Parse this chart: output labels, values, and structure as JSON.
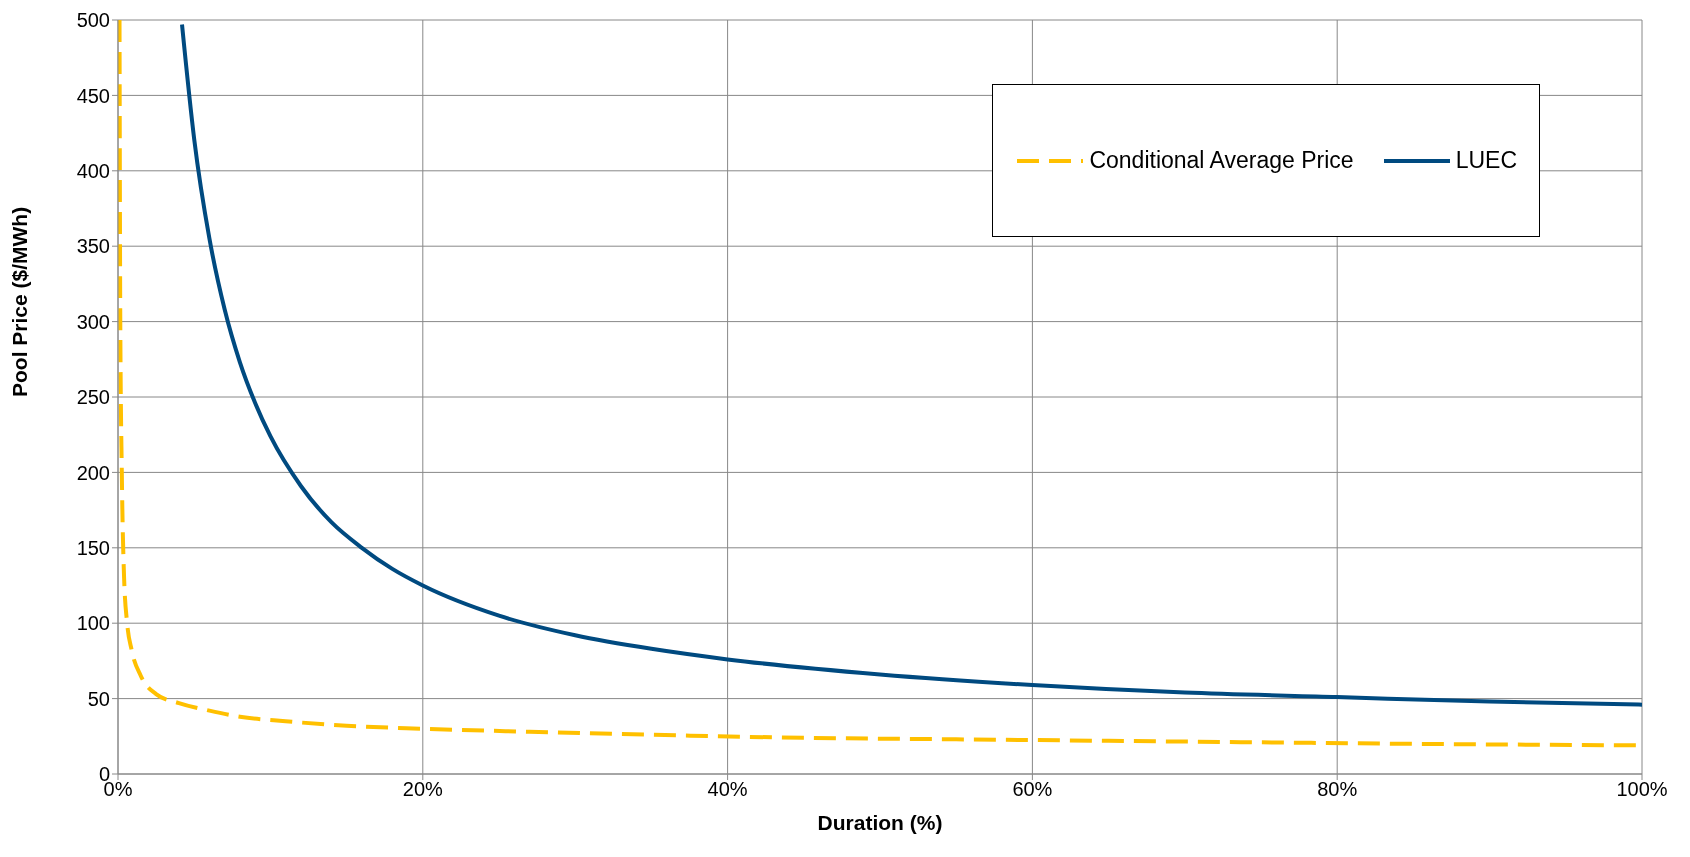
{
  "chart_data": {
    "type": "line",
    "xlabel": "Duration (%)",
    "ylabel": "Pool Price ($/MWh)",
    "xlim": [
      0,
      100
    ],
    "ylim": [
      0,
      500
    ],
    "xticks": [
      {
        "value": 0,
        "label": "0%"
      },
      {
        "value": 20,
        "label": "20%"
      },
      {
        "value": 40,
        "label": "40%"
      },
      {
        "value": 60,
        "label": "60%"
      },
      {
        "value": 80,
        "label": "80%"
      },
      {
        "value": 100,
        "label": "100%"
      }
    ],
    "yticks": [
      0,
      50,
      100,
      150,
      200,
      250,
      300,
      350,
      400,
      450,
      500
    ],
    "grid": true,
    "legend": "top right",
    "marker": "none",
    "series": [
      {
        "name": "Conditional Average Price",
        "color": "#ffc000",
        "line_style": "dashed",
        "x": [
          0.1,
          0.15,
          0.25,
          0.4,
          0.6,
          0.9,
          1.5,
          2.5,
          4,
          6,
          8,
          11,
          15,
          20,
          27,
          35,
          45,
          55,
          65,
          75,
          85,
          100
        ],
        "values": [
          500,
          300,
          200,
          130,
          100,
          82,
          65,
          53,
          47,
          42,
          38,
          35,
          32,
          30,
          28,
          26,
          24,
          23,
          22,
          21,
          20,
          19
        ]
      },
      {
        "name": "LUEC",
        "color": "#004a80",
        "line_style": "solid",
        "x": [
          4.2,
          5,
          6,
          7,
          8,
          9,
          10,
          12,
          14,
          16,
          18,
          20,
          25,
          30,
          35,
          40,
          50,
          60,
          70,
          80,
          90,
          100
        ],
        "values": [
          497,
          421,
          355,
          308,
          273,
          246,
          224,
          191,
          167,
          150,
          136,
          125,
          105,
          92,
          83,
          76,
          66,
          59,
          54,
          51,
          48,
          46
        ]
      }
    ]
  }
}
